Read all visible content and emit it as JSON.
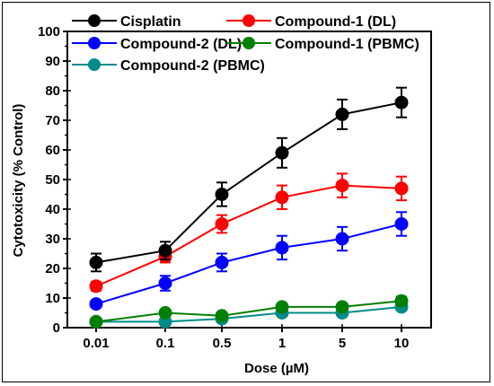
{
  "chart_data": {
    "type": "line",
    "x": [
      "0.01",
      "0.1",
      "0.5",
      "1",
      "5",
      "10"
    ],
    "xlabel": "Dose (µM)",
    "ylabel": "Cytotoxicity (% Control)",
    "ylim": [
      0,
      100
    ],
    "yticks": [
      0,
      10,
      20,
      30,
      40,
      50,
      60,
      70,
      80,
      90,
      100
    ],
    "legend_position": "top-left",
    "series": [
      {
        "name": "Cisplatin",
        "color": "#000000",
        "values": [
          22,
          26,
          45,
          59,
          72,
          76
        ],
        "errors": [
          3,
          3,
          4,
          5,
          5,
          5
        ]
      },
      {
        "name": "Compound-1 (DL)",
        "color": "#ff0000",
        "values": [
          14,
          24,
          35,
          44,
          48,
          47
        ],
        "errors": [
          1.5,
          2,
          3,
          4,
          4,
          4
        ]
      },
      {
        "name": "Compound-2 (DL)",
        "color": "#0000ff",
        "values": [
          8,
          15,
          22,
          27,
          30,
          35
        ],
        "errors": [
          1,
          2.5,
          3,
          4,
          4,
          4
        ]
      },
      {
        "name": "Compound-1 (PBMC)",
        "color": "#008000",
        "values": [
          2,
          5,
          4,
          7,
          7,
          9
        ],
        "errors": [
          0.8,
          1,
          1,
          1.2,
          1.2,
          1.5
        ]
      },
      {
        "name": "Compound-2 (PBMC)",
        "color": "#008b8b",
        "values": [
          2,
          2,
          3,
          5,
          5,
          7
        ],
        "errors": [
          0.8,
          0.8,
          0.8,
          1,
          1,
          1
        ]
      }
    ]
  }
}
